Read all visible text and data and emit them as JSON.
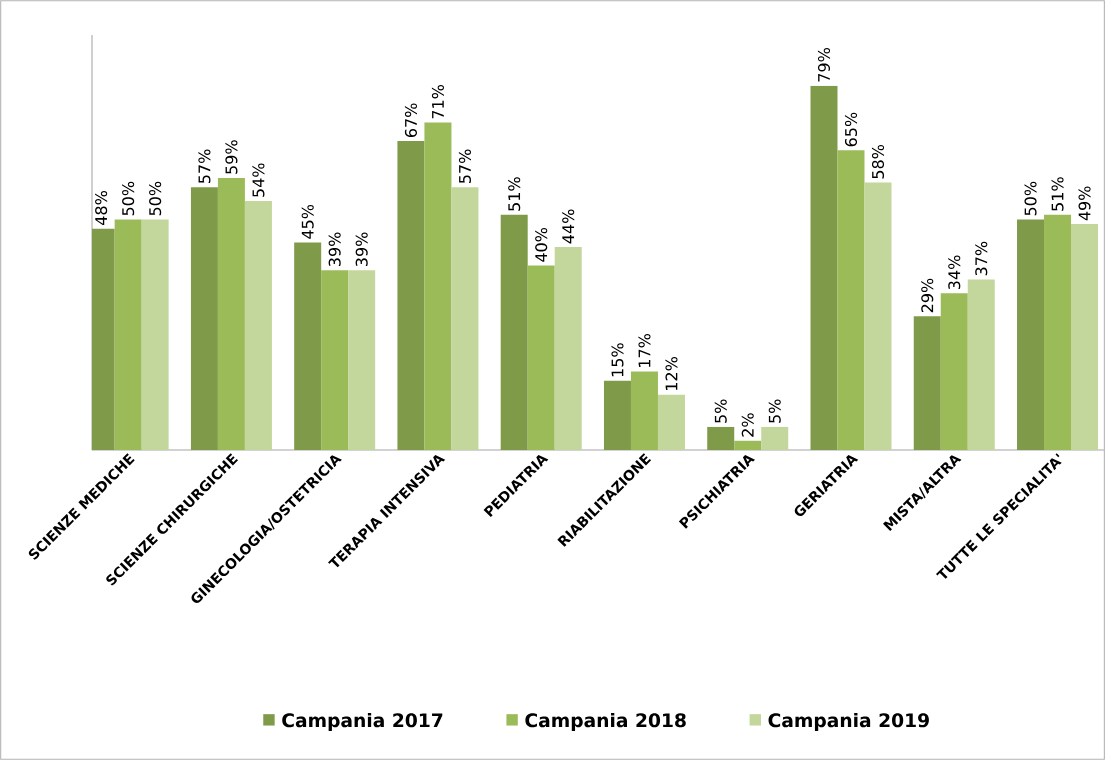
{
  "chart_data": {
    "type": "bar",
    "categories": [
      "SCIENZE MEDICHE",
      "SCIENZE CHIRURGICHE",
      "GINECOLOGIA/OSTETRICIA",
      "TERAPIA INTENSIVA",
      "PEDIATRIA",
      "RIABILITAZIONE",
      "PSICHIATRIA",
      "GERIATRIA",
      "MISTA/ALTRA",
      "TUTTE LE SPECIALITA'"
    ],
    "series": [
      {
        "name": "Campania 2017",
        "color": "#7f9a48",
        "values": [
          48,
          57,
          45,
          67,
          51,
          15,
          5,
          79,
          29,
          50
        ],
        "value_labels": [
          "48%",
          "57%",
          "45%",
          "67%",
          "51%",
          "15%",
          "5%",
          "79%",
          "29%",
          "50%"
        ]
      },
      {
        "name": "Campania 2018",
        "color": "#9bbb59",
        "values": [
          50,
          59,
          39,
          71,
          40,
          17,
          2,
          65,
          34,
          51
        ],
        "value_labels": [
          "50%",
          "59%",
          "39%",
          "71%",
          "40%",
          "17%",
          "2%",
          "65%",
          "34%",
          "51%"
        ]
      },
      {
        "name": "Campania 2019",
        "color": "#c3d69b",
        "values": [
          50,
          54,
          39,
          57,
          44,
          12,
          5,
          58,
          37,
          49
        ],
        "value_labels": [
          "50%",
          "54%",
          "39%",
          "57%",
          "44%",
          "12%",
          "5%",
          "58%",
          "37%",
          "49%"
        ]
      }
    ],
    "ylim": [
      0,
      90
    ],
    "tick_labels": "x",
    "legend": "bottom",
    "grid": false
  }
}
